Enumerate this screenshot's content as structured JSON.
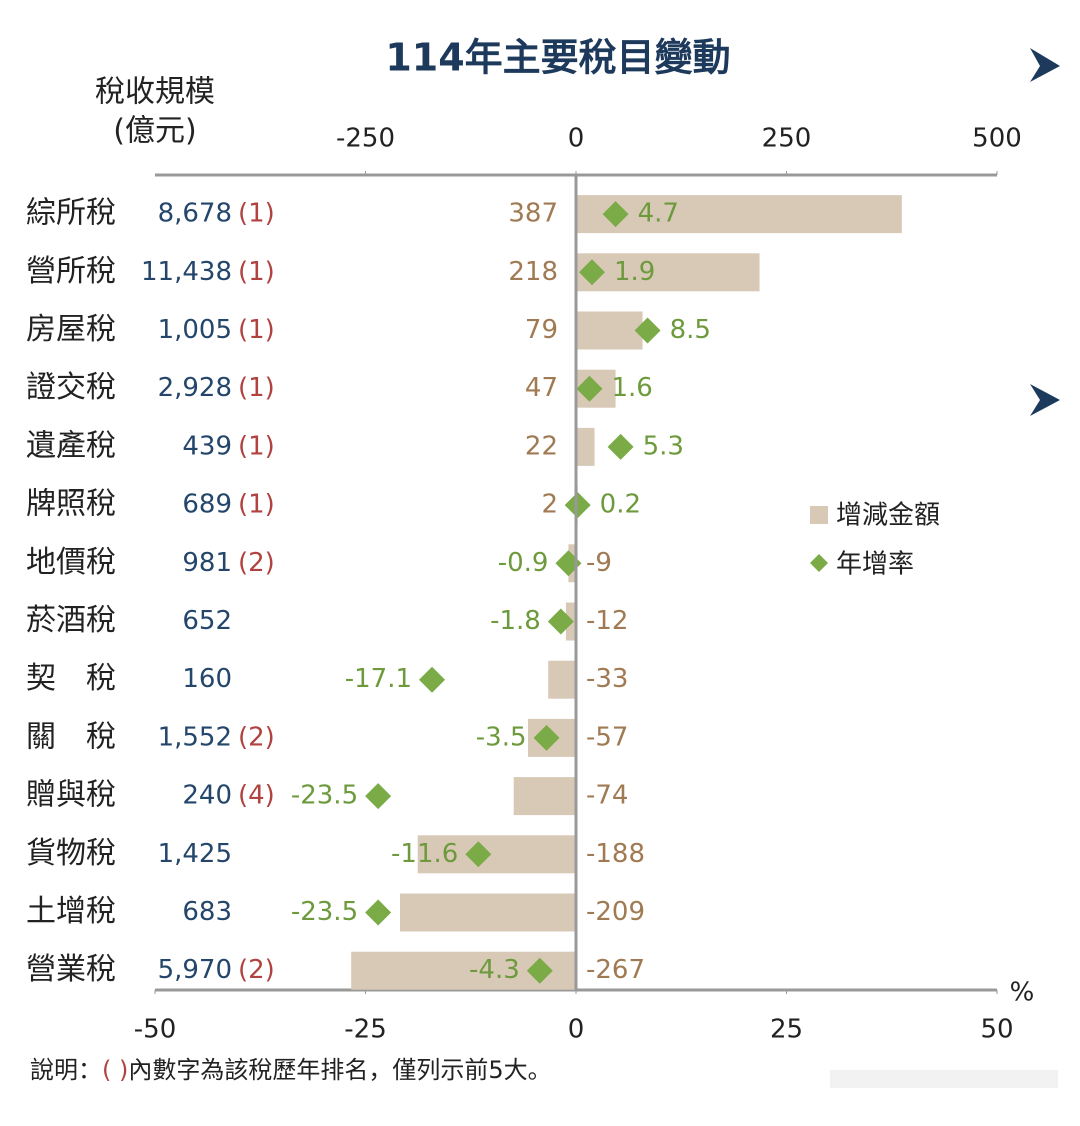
{
  "chart_data": {
    "type": "bar",
    "orientation": "horizontal",
    "title": "114年主要稅目變動",
    "y_axis_label": [
      "稅收規模",
      "(億元)"
    ],
    "categories": [
      "綜所稅",
      "營所稅",
      "房屋稅",
      "證交稅",
      "遺產稅",
      "牌照稅",
      "地價稅",
      "菸酒稅",
      "契　稅",
      "關　稅",
      "贈與稅",
      "貨物稅",
      "土增稅",
      "營業稅"
    ],
    "tax_scale": {
      "values": [
        8678,
        11438,
        1005,
        2928,
        439,
        689,
        981,
        652,
        160,
        1552,
        240,
        1425,
        683,
        5970
      ],
      "value_labels": [
        "8,678",
        "11,438",
        "1,005",
        "2,928",
        "439",
        "689",
        "981",
        "652",
        "160",
        "1,552",
        "240",
        "1,425",
        "683",
        "5,970"
      ]
    },
    "rank_labels": [
      "(1)",
      "(1)",
      "(1)",
      "(1)",
      "(1)",
      "(1)",
      "(2)",
      null,
      null,
      "(2)",
      "(4)",
      null,
      null,
      "(2)"
    ],
    "series": [
      {
        "name": "增減金額",
        "color": "#d8c9b7",
        "axis": "x2",
        "values": [
          387,
          218,
          79,
          47,
          22,
          2,
          -9,
          -12,
          -33,
          -57,
          -74,
          -188,
          -209,
          -267
        ]
      },
      {
        "name": "年增率",
        "color": "#7aab47",
        "values": [
          4.7,
          1.9,
          8.5,
          1.6,
          5.3,
          0.2,
          -0.9,
          -1.8,
          -17.1,
          -3.5,
          -23.5,
          -11.6,
          -23.5,
          -4.3
        ]
      }
    ],
    "x2lim": [
      -500,
      500
    ],
    "x2ticks": [
      -250,
      0,
      250,
      500
    ],
    "xlim": [
      -50,
      50
    ],
    "xticks": [
      -50,
      -25,
      0,
      25,
      50
    ],
    "x_axis_label": "%",
    "legend": "right",
    "footnote": [
      "說明：",
      "( )",
      "內數字為該稅歷年排名，僅列示前5大。"
    ]
  }
}
